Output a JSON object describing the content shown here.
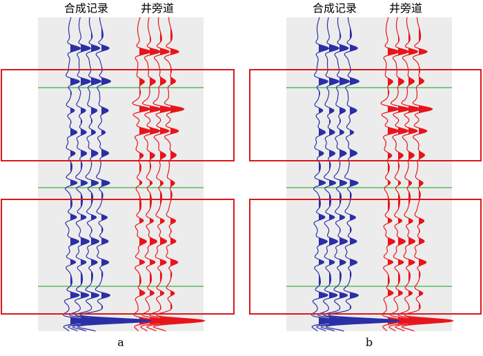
{
  "panels": [
    {
      "label": "a",
      "headers": [
        "合成记录",
        "井旁道"
      ]
    },
    {
      "label": "b",
      "headers": [
        "合成记录",
        "井旁道"
      ]
    }
  ]
}
